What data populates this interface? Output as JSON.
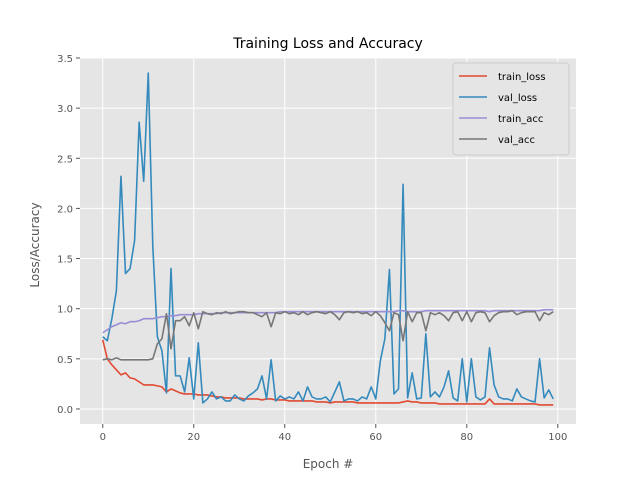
{
  "chart_data": {
    "type": "line",
    "title": "Training Loss and Accuracy",
    "xlabel": "Epoch #",
    "ylabel": "Loss/Accuracy",
    "xlim": [
      -5,
      104
    ],
    "ylim": [
      -0.15,
      3.5
    ],
    "xticks": [
      0,
      20,
      40,
      60,
      80,
      100
    ],
    "yticks": [
      0.0,
      0.5,
      1.0,
      1.5,
      2.0,
      2.5,
      3.0,
      3.5
    ],
    "grid": true,
    "legend_position": "top-right",
    "series": [
      {
        "name": "train_loss",
        "color": "#E24A33",
        "values": [
          0.69,
          0.5,
          0.44,
          0.39,
          0.34,
          0.36,
          0.31,
          0.3,
          0.27,
          0.24,
          0.24,
          0.24,
          0.23,
          0.22,
          0.17,
          0.2,
          0.18,
          0.16,
          0.15,
          0.15,
          0.15,
          0.14,
          0.14,
          0.14,
          0.13,
          0.12,
          0.12,
          0.11,
          0.11,
          0.11,
          0.11,
          0.1,
          0.1,
          0.1,
          0.1,
          0.09,
          0.1,
          0.1,
          0.09,
          0.09,
          0.09,
          0.08,
          0.08,
          0.08,
          0.08,
          0.08,
          0.08,
          0.07,
          0.07,
          0.07,
          0.06,
          0.07,
          0.07,
          0.07,
          0.07,
          0.07,
          0.06,
          0.06,
          0.06,
          0.06,
          0.06,
          0.06,
          0.06,
          0.06,
          0.06,
          0.06,
          0.07,
          0.08,
          0.07,
          0.07,
          0.06,
          0.06,
          0.06,
          0.06,
          0.05,
          0.05,
          0.05,
          0.05,
          0.05,
          0.05,
          0.05,
          0.05,
          0.05,
          0.05,
          0.05,
          0.1,
          0.05,
          0.05,
          0.05,
          0.05,
          0.05,
          0.05,
          0.05,
          0.05,
          0.05,
          0.05,
          0.04,
          0.04,
          0.04,
          0.04
        ]
      },
      {
        "name": "val_loss",
        "color": "#348ABD",
        "values": [
          0.72,
          0.68,
          0.9,
          1.18,
          2.32,
          1.35,
          1.4,
          1.68,
          2.86,
          2.27,
          3.35,
          1.62,
          0.72,
          0.58,
          0.16,
          1.4,
          0.33,
          0.33,
          0.17,
          0.51,
          0.1,
          0.66,
          0.06,
          0.1,
          0.17,
          0.1,
          0.12,
          0.08,
          0.08,
          0.14,
          0.1,
          0.08,
          0.13,
          0.16,
          0.2,
          0.33,
          0.1,
          0.49,
          0.08,
          0.13,
          0.1,
          0.12,
          0.1,
          0.17,
          0.08,
          0.22,
          0.12,
          0.1,
          0.1,
          0.12,
          0.07,
          0.17,
          0.27,
          0.08,
          0.1,
          0.1,
          0.08,
          0.12,
          0.1,
          0.22,
          0.1,
          0.48,
          0.7,
          1.39,
          0.15,
          0.2,
          2.24,
          0.11,
          0.36,
          0.1,
          0.11,
          0.75,
          0.12,
          0.17,
          0.12,
          0.22,
          0.38,
          0.11,
          0.08,
          0.5,
          0.07,
          0.5,
          0.12,
          0.09,
          0.12,
          0.61,
          0.24,
          0.12,
          0.1,
          0.1,
          0.08,
          0.2,
          0.12,
          0.1,
          0.08,
          0.07,
          0.5,
          0.11,
          0.19,
          0.1
        ]
      },
      {
        "name": "train_acc",
        "color": "#988ED5",
        "values": [
          0.76,
          0.79,
          0.82,
          0.84,
          0.86,
          0.85,
          0.87,
          0.87,
          0.88,
          0.9,
          0.9,
          0.9,
          0.91,
          0.92,
          0.92,
          0.93,
          0.93,
          0.94,
          0.94,
          0.94,
          0.94,
          0.95,
          0.95,
          0.95,
          0.95,
          0.95,
          0.96,
          0.96,
          0.96,
          0.96,
          0.96,
          0.96,
          0.96,
          0.96,
          0.96,
          0.96,
          0.96,
          0.96,
          0.96,
          0.97,
          0.97,
          0.97,
          0.97,
          0.97,
          0.97,
          0.97,
          0.97,
          0.97,
          0.97,
          0.97,
          0.97,
          0.97,
          0.97,
          0.97,
          0.97,
          0.97,
          0.97,
          0.97,
          0.97,
          0.97,
          0.97,
          0.97,
          0.97,
          0.97,
          0.97,
          0.98,
          0.98,
          0.97,
          0.97,
          0.97,
          0.97,
          0.98,
          0.98,
          0.98,
          0.98,
          0.98,
          0.98,
          0.98,
          0.98,
          0.98,
          0.98,
          0.98,
          0.98,
          0.98,
          0.98,
          0.97,
          0.98,
          0.98,
          0.98,
          0.98,
          0.98,
          0.98,
          0.98,
          0.98,
          0.98,
          0.98,
          0.98,
          0.99,
          0.99,
          0.99
        ]
      },
      {
        "name": "val_acc",
        "color": "#777777",
        "values": [
          0.49,
          0.5,
          0.49,
          0.51,
          0.49,
          0.49,
          0.49,
          0.49,
          0.49,
          0.49,
          0.49,
          0.5,
          0.65,
          0.7,
          0.95,
          0.6,
          0.88,
          0.88,
          0.92,
          0.83,
          0.96,
          0.8,
          0.97,
          0.95,
          0.94,
          0.96,
          0.95,
          0.97,
          0.95,
          0.96,
          0.97,
          0.97,
          0.96,
          0.96,
          0.94,
          0.92,
          0.96,
          0.82,
          0.96,
          0.95,
          0.97,
          0.95,
          0.96,
          0.94,
          0.97,
          0.94,
          0.96,
          0.97,
          0.96,
          0.95,
          0.97,
          0.94,
          0.89,
          0.96,
          0.97,
          0.96,
          0.97,
          0.95,
          0.96,
          0.93,
          0.97,
          0.93,
          0.86,
          0.78,
          0.96,
          0.94,
          0.68,
          0.97,
          0.87,
          0.96,
          0.96,
          0.78,
          0.96,
          0.94,
          0.96,
          0.93,
          0.88,
          0.96,
          0.97,
          0.88,
          0.97,
          0.87,
          0.96,
          0.97,
          0.96,
          0.87,
          0.93,
          0.96,
          0.97,
          0.97,
          0.98,
          0.94,
          0.96,
          0.97,
          0.97,
          0.97,
          0.88,
          0.96,
          0.94,
          0.97
        ]
      }
    ]
  }
}
